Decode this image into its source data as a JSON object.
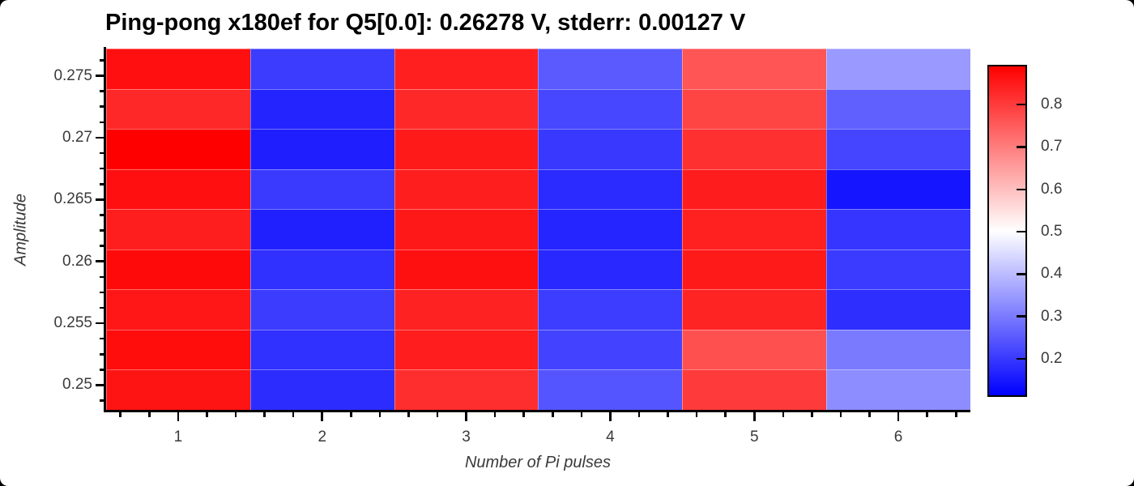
{
  "chart_data": {
    "type": "heatmap",
    "title": "Ping-pong x180ef for Q5[0.0]: 0.26278 V, stderr: 0.00127 V",
    "xlabel": "Number of Pi pulses",
    "ylabel": "Amplitude",
    "x": [
      1,
      2,
      3,
      4,
      5,
      6
    ],
    "y_row_centers_top_to_bottom": [
      0.2755,
      0.2722,
      0.2689,
      0.2656,
      0.2622,
      0.2589,
      0.2556,
      0.2523,
      0.249
    ],
    "values_rows_top_to_bottom": [
      [
        0.871,
        0.203,
        0.846,
        0.248,
        0.763,
        0.345
      ],
      [
        0.833,
        0.166,
        0.833,
        0.219,
        0.79,
        0.257
      ],
      [
        0.894,
        0.156,
        0.854,
        0.196,
        0.82,
        0.216
      ],
      [
        0.871,
        0.199,
        0.848,
        0.176,
        0.851,
        0.142
      ],
      [
        0.848,
        0.159,
        0.857,
        0.167,
        0.845,
        0.192
      ],
      [
        0.878,
        0.184,
        0.87,
        0.171,
        0.854,
        0.201
      ],
      [
        0.86,
        0.203,
        0.842,
        0.204,
        0.838,
        0.181
      ],
      [
        0.875,
        0.184,
        0.849,
        0.213,
        0.771,
        0.297
      ],
      [
        0.863,
        0.177,
        0.823,
        0.241,
        0.805,
        0.326
      ]
    ],
    "colormap": {
      "name": "bwr",
      "low": "#0000ff",
      "mid": "#ffffff",
      "high": "#ff0000"
    },
    "vmin": 0.11,
    "vmax": 0.894,
    "x_axis": {
      "tick_values": [
        1,
        2,
        3,
        4,
        5,
        6
      ],
      "tick_labels": [
        "1",
        "2",
        "3",
        "4",
        "5",
        "6"
      ],
      "range": [
        0.5,
        6.5
      ],
      "minor_tick_step": 0.2
    },
    "y_axis": {
      "tick_values": [
        0.275,
        0.27,
        0.265,
        0.26,
        0.255,
        0.25
      ],
      "tick_labels": [
        "0.275",
        "0.27",
        "0.265",
        "0.26",
        "0.255",
        "0.25"
      ],
      "range_top_bottom": [
        0.2772,
        0.248
      ],
      "minor_tick_step": 0.00125
    },
    "colorbar": {
      "tick_values": [
        0.8,
        0.7,
        0.6,
        0.5,
        0.4,
        0.3,
        0.2
      ],
      "tick_labels": [
        "0.8",
        "0.7",
        "0.6",
        "0.5",
        "0.4",
        "0.3",
        "0.2"
      ],
      "position": "right"
    },
    "grid": false,
    "legend": null
  }
}
